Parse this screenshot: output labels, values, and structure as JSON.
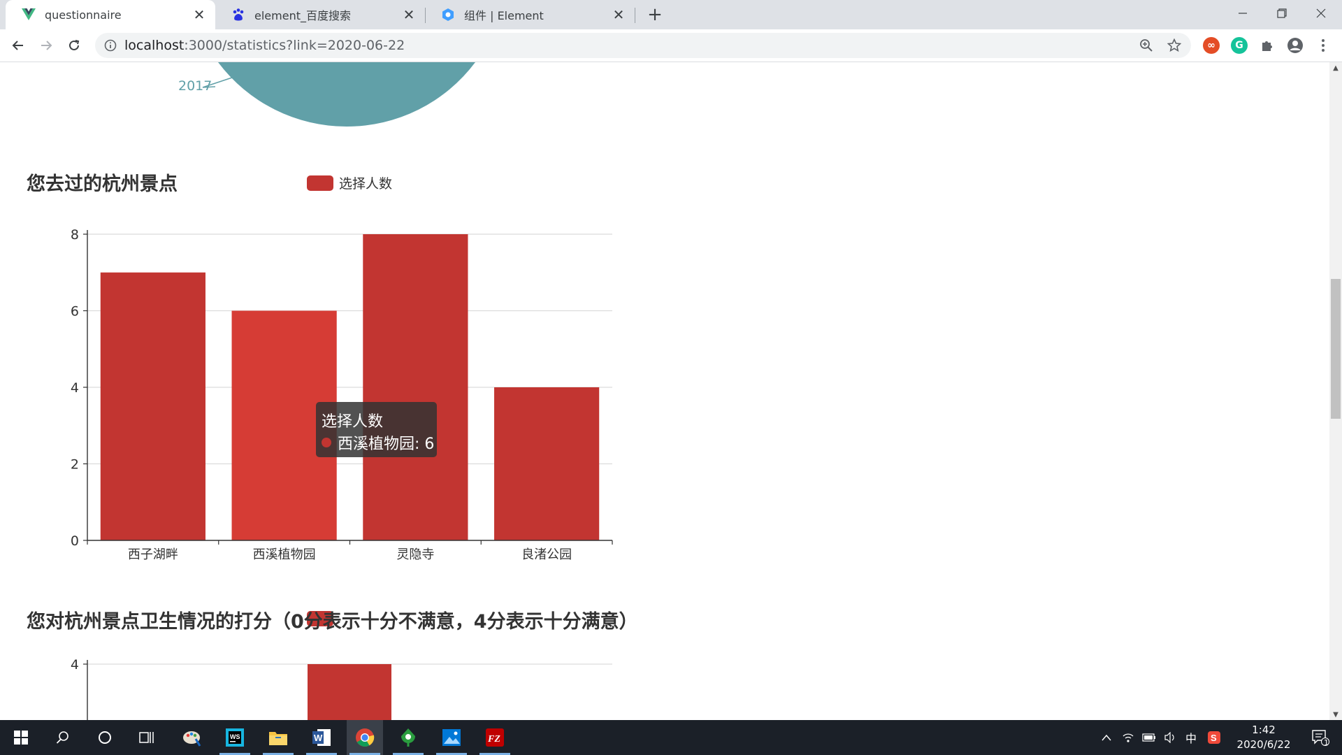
{
  "browser": {
    "tabs": [
      {
        "title": "questionnaire",
        "active": true
      },
      {
        "title": "element_百度搜索",
        "active": false
      },
      {
        "title": "组件 | Element",
        "active": false
      }
    ],
    "url_host": "localhost",
    "url_rest": ":3000/statistics?link=2020-06-22",
    "new_tab": "+"
  },
  "pie_fragment": {
    "label": "2017",
    "color": "#61a0a8"
  },
  "chart1": {
    "title": "您去过的杭州景点",
    "legend": "选择人数"
  },
  "chart_data": [
    {
      "type": "bar",
      "title": "您去过的杭州景点",
      "categories": [
        "西子湖畔",
        "西溪植物园",
        "灵隐寺",
        "良渚公园"
      ],
      "series": [
        {
          "name": "选择人数",
          "values": [
            7,
            6,
            8,
            4
          ]
        }
      ],
      "yticks": [
        "0",
        "2",
        "4",
        "6",
        "8"
      ],
      "ylim": [
        0,
        8
      ],
      "color": "#c23531",
      "highlight_color": "#d63c35",
      "highlight_index": 1
    },
    {
      "type": "bar",
      "title": "您对杭州景点卫生情况的打分（0分表示十分不满意，4分表示十分满意）",
      "yticks": [
        "4"
      ],
      "visible_top_tick": 4,
      "color": "#c23531"
    }
  ],
  "tooltip": {
    "title": "选择人数",
    "item": "西溪植物园: 6",
    "color": "#c23531"
  },
  "chart2": {
    "title": "您对杭州景点卫生情况的打分（0分表示十分不满意，4分表示十分满意）"
  },
  "taskbar": {
    "time": "1:42",
    "date": "2020/6/22",
    "ime": "中",
    "notification_count": "1"
  }
}
